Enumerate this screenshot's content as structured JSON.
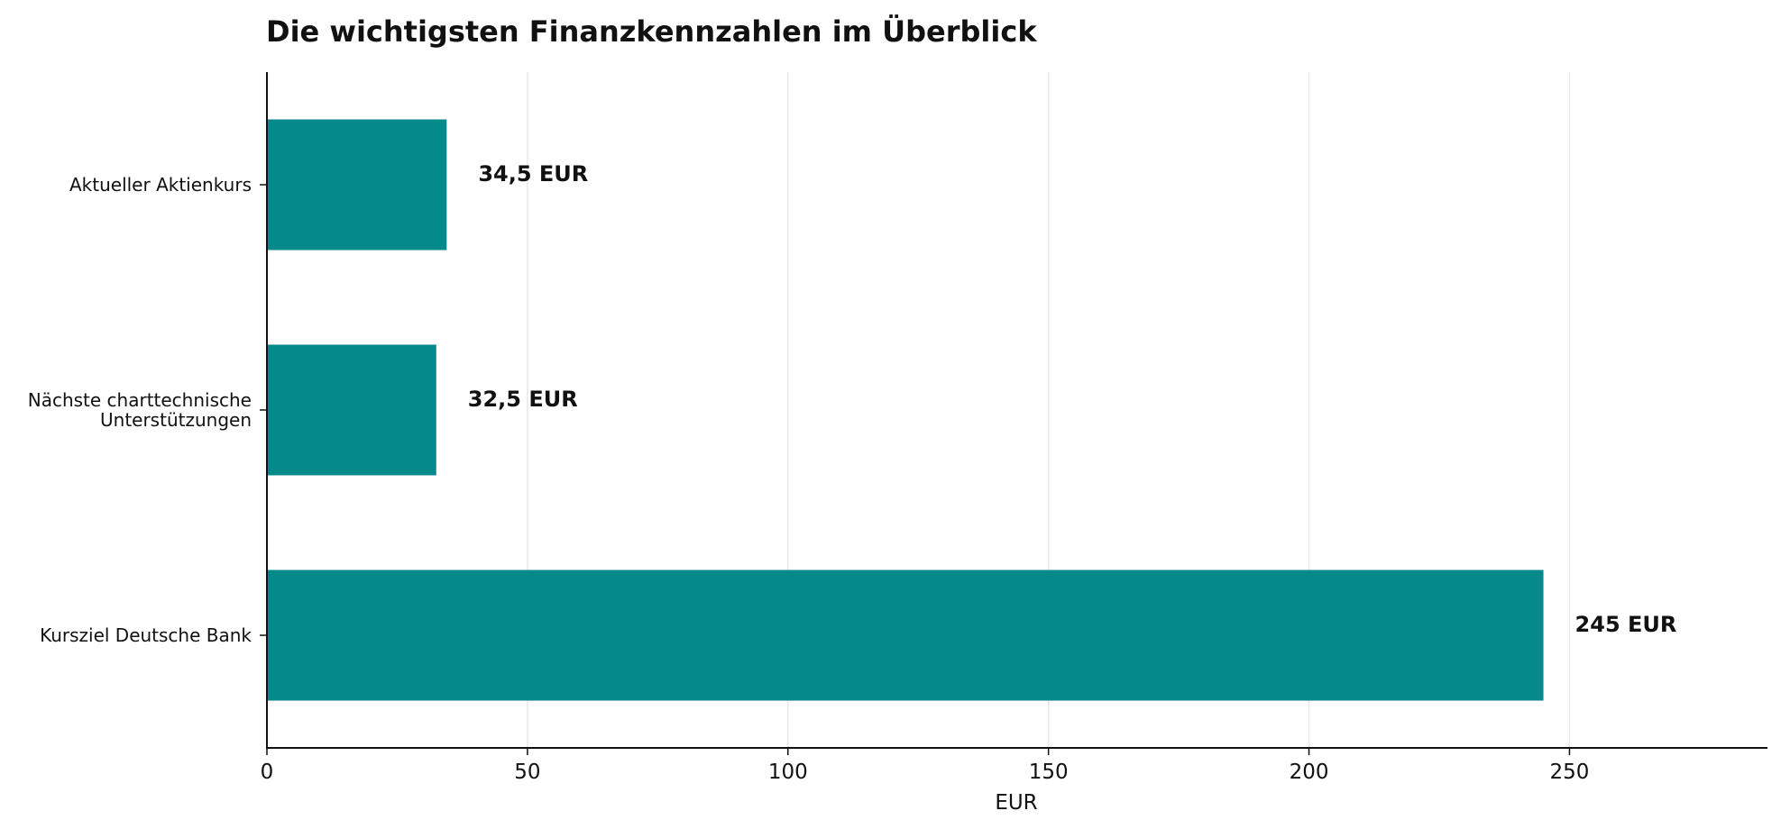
{
  "chart_data": {
    "type": "bar",
    "orientation": "horizontal",
    "title": "Die wichtigsten Finanzkennzahlen im Überblick",
    "xlabel": "EUR",
    "ylabel": "",
    "xlim": [
      0,
      288
    ],
    "x_ticks": [
      0,
      50,
      100,
      150,
      200,
      250
    ],
    "grid": "vertical",
    "bar_color": "#05898A",
    "categories": [
      [
        "Aktueller Aktienkurs"
      ],
      [
        "Nächste charttechnische",
        "Unterstützungen"
      ],
      [
        "Kursziel Deutsche Bank"
      ]
    ],
    "values": [
      34.5,
      32.5,
      245
    ],
    "value_labels": [
      "34,5 EUR",
      "32,5 EUR",
      "245 EUR"
    ]
  }
}
